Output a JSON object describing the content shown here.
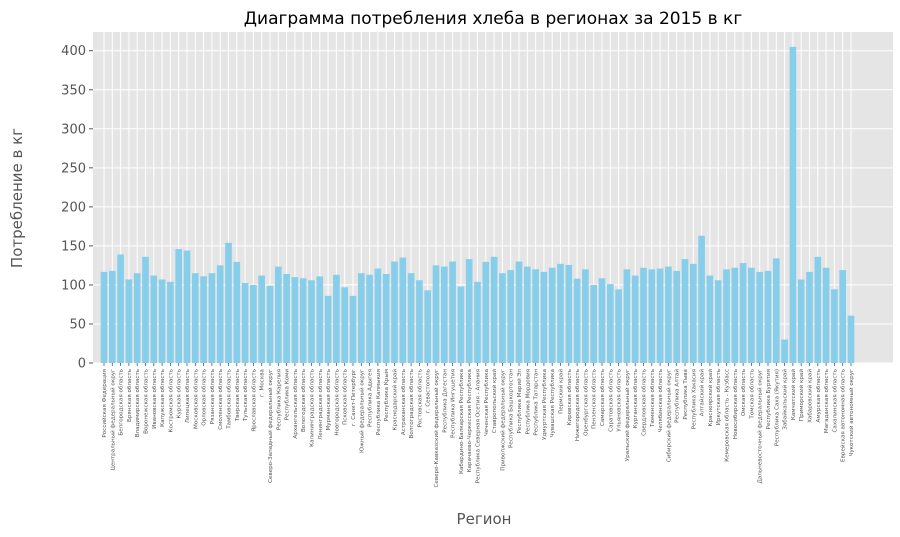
{
  "chart_data": {
    "type": "bar",
    "title": "Диаграмма потребления хлеба в регионах за 2015 в кг",
    "xlabel": "Регион",
    "ylabel": "Потребление в кг",
    "ylim": [
      0,
      424
    ],
    "yticks": [
      0,
      50,
      100,
      150,
      200,
      250,
      300,
      350,
      400
    ],
    "grid": true,
    "bar_color": "#87ceeb",
    "background_color": "#e5e5e5",
    "categories": [
      "Российская Федерация",
      "Центральный федеральный округ",
      "Белгородская область",
      "Брянская область",
      "Владимирская область",
      "Воронежская область",
      "Ивановская область",
      "Калужская область",
      "Костромская область",
      "Курская область",
      "Липецкая область",
      "Московская область",
      "Орловская область",
      "Рязанская область",
      "Смоленская область",
      "Тамбовская область",
      "Тверская область",
      "Тульская область",
      "Ярославская область",
      "г. Москва",
      "Северо-Западный федеральный округ",
      "Республика Карелия",
      "Республика Коми",
      "Архангельская область",
      "Вологодская область",
      "Калининградская область",
      "Ленинградская область",
      "Мурманская область",
      "Новгородская область",
      "Псковская область",
      "г. Санкт-Петербург",
      "Южный федеральный округ",
      "Республика Адыгея",
      "Республика Калмыкия",
      "Республика Крым",
      "Краснодарский край",
      "Астраханская область",
      "Волгоградская область",
      "Ростовская область",
      "г. Севастополь",
      "Северо-Кавказский федеральный округ",
      "Республика Дагестан",
      "Республика Ингушетия",
      "Кабардино-Балкарская Республика",
      "Карачаево-Черкесская Республика",
      "Республика Северная Осетия - Алания",
      "Чеченская Республика",
      "Ставропольский край",
      "Приволжский федеральный округ",
      "Республика Башкортостан",
      "Республика Марий Эл",
      "Республика Мордовия",
      "Республика Татарстан",
      "Удмуртская Республика",
      "Чувашская Республика",
      "Пермский край",
      "Кировская область",
      "Нижегородская область",
      "Оренбургская область",
      "Пензенская область",
      "Самарская область",
      "Саратовская область",
      "Ульяновская область",
      "Уральский федеральный округ",
      "Курганская область",
      "Свердловская область",
      "Тюменская область",
      "Челябинская область",
      "Сибирский федеральный округ",
      "Республика Алтай",
      "Республика Тыва",
      "Республика Хакасия",
      "Алтайский край",
      "Красноярский край",
      "Иркутская область",
      "Кемеровская область - Кузбасс",
      "Новосибирская область",
      "Омская область",
      "Томская область",
      "Дальневосточный федеральный округ",
      "Республика Бурятия",
      "Республика Саха (Якутия)",
      "Забайкальский край",
      "Камчатский край",
      "Приморский край",
      "Хабаровский край",
      "Амурская область",
      "Магаданская область",
      "Сахалинская область",
      "Еврейская автономная область",
      "Чукотский автономный округ"
    ],
    "values": [
      116.7,
      118,
      139,
      107,
      115,
      136,
      112,
      107,
      104,
      146,
      144,
      115,
      111,
      115,
      125,
      154,
      129.5,
      102.5,
      100,
      112,
      99,
      123.5,
      114,
      110,
      108.5,
      106,
      111,
      86,
      113,
      97,
      86,
      115,
      113,
      121,
      114,
      130,
      135,
      115,
      106,
      93,
      125,
      123.5,
      130,
      98,
      133,
      104,
      129.5,
      136,
      115,
      119,
      130,
      123.5,
      120,
      116.7,
      122,
      127,
      125.6,
      108,
      120,
      100,
      108.5,
      101,
      94.4,
      120,
      112,
      122,
      120,
      121,
      123.5,
      118,
      133,
      127,
      163,
      112,
      106,
      120,
      122,
      128,
      122,
      116.7,
      118,
      134,
      30,
      405,
      107,
      116.7,
      136,
      122,
      94.4,
      119,
      60.7
    ]
  }
}
